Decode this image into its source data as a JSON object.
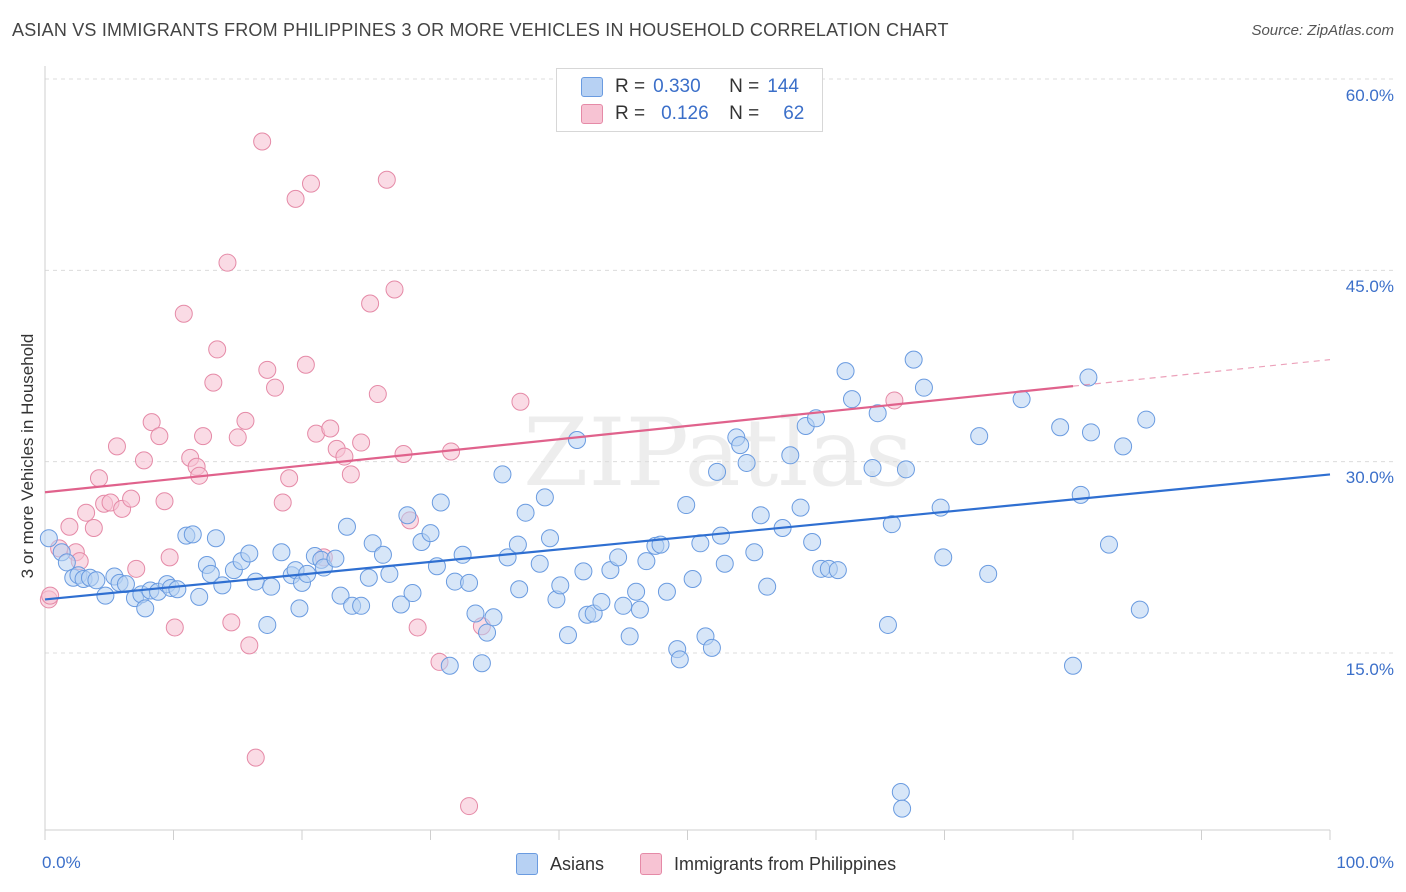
{
  "title": "ASIAN VS IMMIGRANTS FROM PHILIPPINES 3 OR MORE VEHICLES IN HOUSEHOLD CORRELATION CHART",
  "source": "Source: ZipAtlas.com",
  "watermark": "ZIPatlas",
  "colors": {
    "asian_fill": "#b7d1f3",
    "asian_stroke": "#6a9be0",
    "asian_line": "#2f6fd1",
    "phil_fill": "#f7c3d3",
    "phil_stroke": "#e58aa7",
    "phil_line": "#e0628c",
    "grid": "#dcdcdc",
    "axis_text": "#3b6fc9"
  },
  "legend": {
    "rows": [
      {
        "r_label": "R =",
        "r_value": "0.330",
        "n_label": "N =",
        "n_value": "144"
      },
      {
        "r_label": "R =",
        "r_value": "0.126",
        "n_label": "N =",
        "n_value": "62"
      }
    ]
  },
  "bottom_legend": {
    "asians": "Asians",
    "philippines": "Immigrants from Philippines"
  },
  "chart_data": {
    "type": "scatter",
    "title": "ASIAN VS IMMIGRANTS FROM PHILIPPINES 3 OR MORE VEHICLES IN HOUSEHOLD CORRELATION CHART",
    "xlabel": "",
    "ylabel": "3 or more Vehicles in Household",
    "xlim": [
      0,
      100
    ],
    "ylim": [
      0,
      61
    ],
    "x_tick_labels": [
      "0.0%",
      "100.0%"
    ],
    "y_ticks": [
      15,
      30,
      45,
      60
    ],
    "y_tick_labels": [
      "15.0%",
      "30.0%",
      "45.0%",
      "60.0%"
    ],
    "grid": true,
    "legend_position": "top-center",
    "series": [
      {
        "name": "Asians",
        "R": 0.33,
        "N": 144,
        "trend": {
          "x": [
            0,
            100
          ],
          "y": [
            19.2,
            29.0
          ],
          "dashed_from": null
        },
        "points": [
          [
            0.3,
            24.0
          ],
          [
            1.3,
            22.9
          ],
          [
            1.7,
            22.1
          ],
          [
            2.2,
            20.9
          ],
          [
            2.6,
            21.1
          ],
          [
            3.0,
            20.8
          ],
          [
            3.5,
            20.9
          ],
          [
            4.0,
            20.7
          ],
          [
            4.7,
            19.5
          ],
          [
            5.4,
            21.0
          ],
          [
            5.8,
            20.5
          ],
          [
            6.3,
            20.4
          ],
          [
            7.0,
            19.3
          ],
          [
            7.5,
            19.6
          ],
          [
            7.8,
            18.5
          ],
          [
            8.2,
            19.9
          ],
          [
            8.8,
            19.8
          ],
          [
            9.5,
            20.4
          ],
          [
            9.8,
            20.1
          ],
          [
            10.3,
            20.0
          ],
          [
            11.0,
            24.2
          ],
          [
            11.5,
            24.3
          ],
          [
            12.0,
            19.4
          ],
          [
            12.6,
            21.9
          ],
          [
            12.9,
            21.2
          ],
          [
            13.3,
            24.0
          ],
          [
            13.8,
            20.3
          ],
          [
            14.7,
            21.5
          ],
          [
            15.3,
            22.2
          ],
          [
            15.9,
            22.8
          ],
          [
            16.4,
            20.6
          ],
          [
            17.3,
            17.2
          ],
          [
            17.6,
            20.2
          ],
          [
            18.4,
            22.9
          ],
          [
            19.2,
            21.1
          ],
          [
            19.5,
            21.5
          ],
          [
            19.8,
            18.5
          ],
          [
            20.0,
            20.5
          ],
          [
            20.4,
            21.2
          ],
          [
            21.0,
            22.6
          ],
          [
            21.5,
            22.3
          ],
          [
            21.7,
            21.7
          ],
          [
            22.6,
            22.4
          ],
          [
            23.0,
            19.5
          ],
          [
            23.5,
            24.9
          ],
          [
            23.9,
            18.7
          ],
          [
            24.6,
            18.7
          ],
          [
            25.2,
            20.9
          ],
          [
            25.5,
            23.6
          ],
          [
            26.3,
            22.7
          ],
          [
            26.8,
            21.2
          ],
          [
            27.7,
            18.8
          ],
          [
            28.2,
            25.8
          ],
          [
            28.6,
            19.7
          ],
          [
            29.3,
            23.7
          ],
          [
            30.0,
            24.4
          ],
          [
            30.5,
            21.8
          ],
          [
            30.8,
            26.8
          ],
          [
            31.5,
            14.0
          ],
          [
            31.9,
            20.6
          ],
          [
            32.5,
            22.7
          ],
          [
            33.0,
            20.5
          ],
          [
            33.5,
            18.1
          ],
          [
            34.0,
            14.2
          ],
          [
            34.4,
            16.6
          ],
          [
            34.9,
            17.8
          ],
          [
            35.6,
            29.0
          ],
          [
            36.0,
            22.5
          ],
          [
            36.8,
            23.5
          ],
          [
            36.9,
            20.0
          ],
          [
            37.4,
            26.0
          ],
          [
            38.5,
            22.0
          ],
          [
            38.9,
            27.2
          ],
          [
            39.3,
            24.0
          ],
          [
            39.8,
            19.2
          ],
          [
            40.1,
            20.3
          ],
          [
            40.7,
            16.4
          ],
          [
            41.4,
            31.7
          ],
          [
            41.9,
            21.4
          ],
          [
            42.2,
            18.0
          ],
          [
            42.7,
            18.1
          ],
          [
            43.3,
            19.0
          ],
          [
            44.0,
            21.5
          ],
          [
            44.6,
            22.5
          ],
          [
            45.0,
            18.7
          ],
          [
            45.5,
            16.3
          ],
          [
            46.0,
            19.8
          ],
          [
            46.3,
            18.4
          ],
          [
            46.8,
            22.2
          ],
          [
            47.5,
            23.4
          ],
          [
            47.9,
            23.5
          ],
          [
            48.4,
            19.8
          ],
          [
            49.2,
            15.3
          ],
          [
            49.4,
            14.5
          ],
          [
            49.9,
            26.6
          ],
          [
            50.4,
            20.8
          ],
          [
            51.0,
            23.6
          ],
          [
            51.4,
            16.3
          ],
          [
            51.9,
            15.4
          ],
          [
            52.3,
            29.2
          ],
          [
            52.6,
            24.2
          ],
          [
            52.9,
            22.0
          ],
          [
            53.8,
            31.9
          ],
          [
            54.1,
            31.3
          ],
          [
            54.6,
            29.9
          ],
          [
            55.2,
            22.9
          ],
          [
            55.7,
            25.8
          ],
          [
            56.2,
            20.2
          ],
          [
            57.4,
            24.8
          ],
          [
            58.0,
            30.5
          ],
          [
            58.8,
            26.4
          ],
          [
            59.2,
            32.8
          ],
          [
            59.7,
            23.7
          ],
          [
            60.0,
            33.4
          ],
          [
            60.4,
            21.6
          ],
          [
            61.0,
            21.6
          ],
          [
            61.7,
            21.5
          ],
          [
            62.3,
            37.1
          ],
          [
            62.8,
            34.9
          ],
          [
            64.4,
            29.5
          ],
          [
            64.8,
            33.8
          ],
          [
            65.6,
            17.2
          ],
          [
            65.9,
            25.1
          ],
          [
            66.6,
            4.1
          ],
          [
            66.7,
            2.8
          ],
          [
            67.0,
            29.4
          ],
          [
            67.6,
            38.0
          ],
          [
            68.4,
            35.8
          ],
          [
            69.7,
            26.4
          ],
          [
            69.9,
            22.5
          ],
          [
            72.7,
            32.0
          ],
          [
            73.4,
            21.2
          ],
          [
            76.0,
            34.9
          ],
          [
            79.0,
            32.7
          ],
          [
            80.0,
            14.0
          ],
          [
            80.6,
            27.4
          ],
          [
            81.2,
            36.6
          ],
          [
            81.4,
            32.3
          ],
          [
            82.8,
            23.5
          ],
          [
            83.9,
            31.2
          ],
          [
            85.2,
            18.4
          ],
          [
            85.7,
            33.3
          ]
        ]
      },
      {
        "name": "Immigrants from Philippines",
        "R": 0.126,
        "N": 62,
        "trend": {
          "x": [
            0,
            100
          ],
          "y": [
            27.6,
            38.0
          ],
          "dashed_from": 80
        },
        "points": [
          [
            0.3,
            19.2
          ],
          [
            0.4,
            19.5
          ],
          [
            1.1,
            23.2
          ],
          [
            1.9,
            24.9
          ],
          [
            2.4,
            22.9
          ],
          [
            2.7,
            22.2
          ],
          [
            3.2,
            26.0
          ],
          [
            3.8,
            24.8
          ],
          [
            4.2,
            28.7
          ],
          [
            4.6,
            26.7
          ],
          [
            5.1,
            26.8
          ],
          [
            5.6,
            31.2
          ],
          [
            6.0,
            26.3
          ],
          [
            6.7,
            27.1
          ],
          [
            7.1,
            21.6
          ],
          [
            7.7,
            30.1
          ],
          [
            8.3,
            33.1
          ],
          [
            8.9,
            32.0
          ],
          [
            9.3,
            26.9
          ],
          [
            9.7,
            22.5
          ],
          [
            10.1,
            17.0
          ],
          [
            10.8,
            41.6
          ],
          [
            11.3,
            30.3
          ],
          [
            11.8,
            29.6
          ],
          [
            12.0,
            28.9
          ],
          [
            12.3,
            32.0
          ],
          [
            13.1,
            36.2
          ],
          [
            13.4,
            38.8
          ],
          [
            14.2,
            45.6
          ],
          [
            14.5,
            17.4
          ],
          [
            15.0,
            31.9
          ],
          [
            15.6,
            33.2
          ],
          [
            15.9,
            15.6
          ],
          [
            16.4,
            6.8
          ],
          [
            16.9,
            55.1
          ],
          [
            17.3,
            37.2
          ],
          [
            17.9,
            35.8
          ],
          [
            18.5,
            26.8
          ],
          [
            19.0,
            28.7
          ],
          [
            19.5,
            50.6
          ],
          [
            20.3,
            37.6
          ],
          [
            20.7,
            51.8
          ],
          [
            21.1,
            32.2
          ],
          [
            21.7,
            22.5
          ],
          [
            22.2,
            32.6
          ],
          [
            22.7,
            31.0
          ],
          [
            23.3,
            30.4
          ],
          [
            23.8,
            29.0
          ],
          [
            24.6,
            31.5
          ],
          [
            25.3,
            42.4
          ],
          [
            25.9,
            35.3
          ],
          [
            26.6,
            52.1
          ],
          [
            27.2,
            43.5
          ],
          [
            27.9,
            30.6
          ],
          [
            28.4,
            25.4
          ],
          [
            29.0,
            17.0
          ],
          [
            30.7,
            14.3
          ],
          [
            31.6,
            30.8
          ],
          [
            33.0,
            3.0
          ],
          [
            34.0,
            17.1
          ],
          [
            37.0,
            34.7
          ],
          [
            66.1,
            34.8
          ]
        ]
      }
    ]
  }
}
